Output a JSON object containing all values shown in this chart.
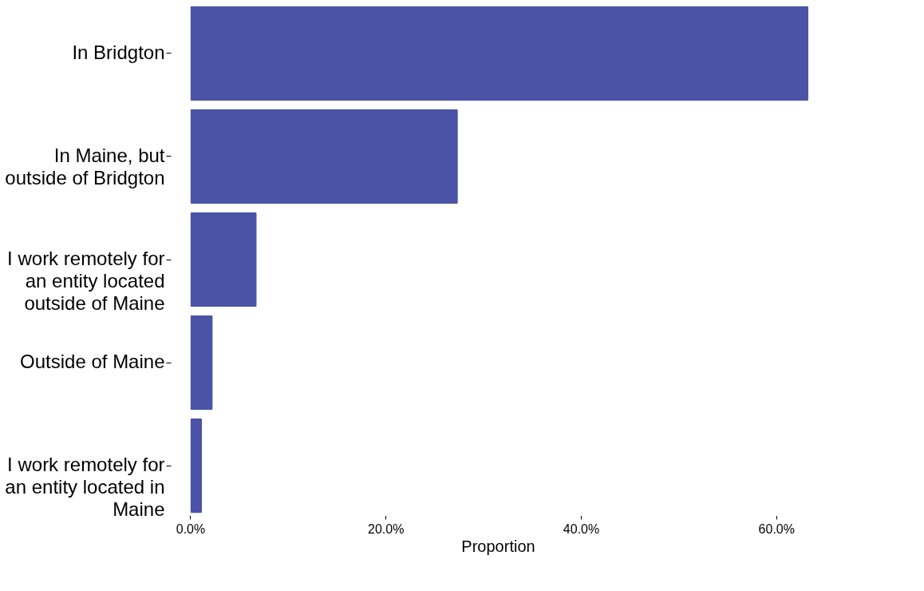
{
  "chart_data": {
    "type": "bar",
    "orientation": "horizontal",
    "xlabel": "Proportion",
    "categories": [
      "In Bridgton",
      "In Maine, but outside of Bridgton",
      "I work remotely for an entity located outside of Maine",
      "Outside of Maine",
      "I work remotely for an entity located in Maine"
    ],
    "values": [
      63.3,
      27.4,
      6.8,
      2.3,
      1.2
    ],
    "color": "#4b53a6",
    "xlim": [
      -2,
      65
    ],
    "xticks": [
      {
        "value": 0,
        "label": "0.0%"
      },
      {
        "value": 20,
        "label": "20.0%"
      },
      {
        "value": 40,
        "label": "40.0%"
      },
      {
        "value": 60,
        "label": "60.0%"
      }
    ],
    "grid": false
  }
}
